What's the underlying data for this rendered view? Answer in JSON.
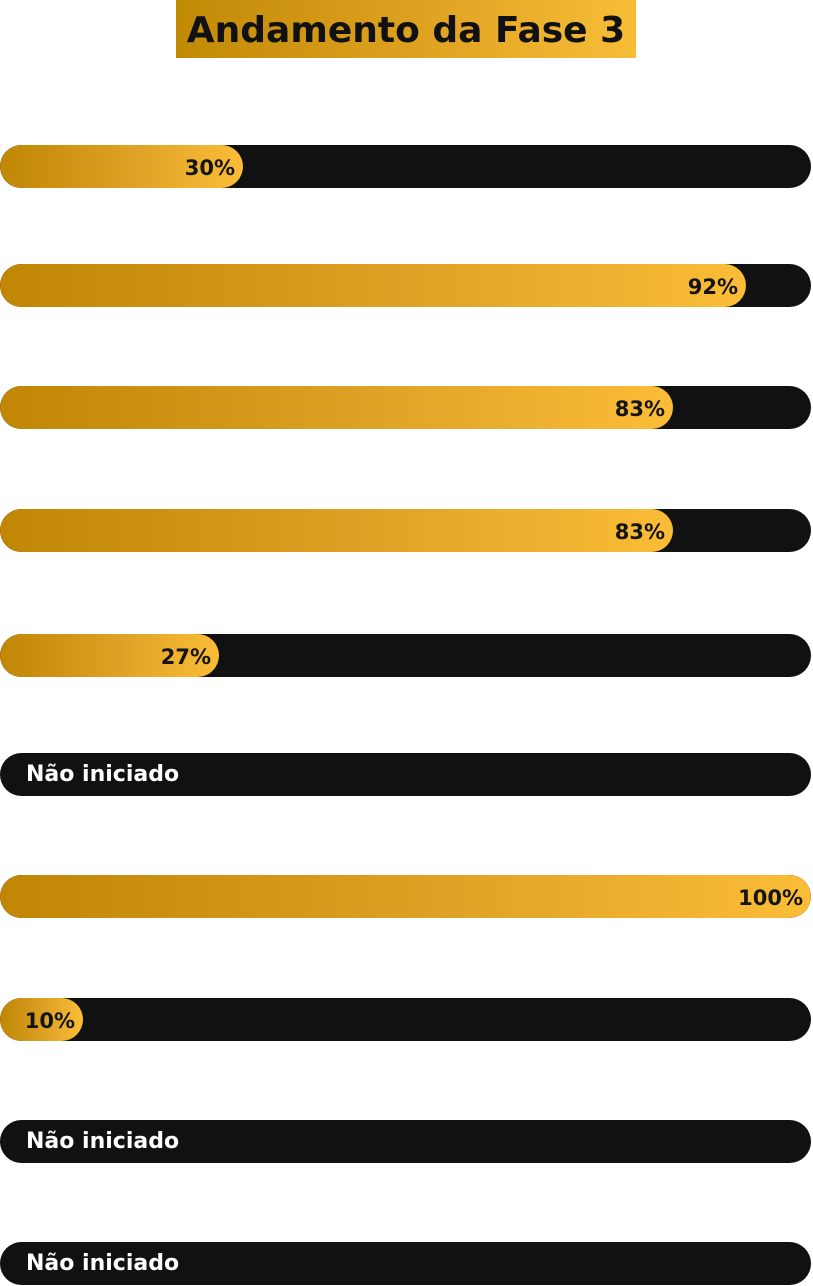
{
  "title": "Andamento da Fase 3",
  "colors": {
    "track": "#111111",
    "fill_start": "#c08604",
    "fill_end": "#fbbd37",
    "title_text": "#111111",
    "status_text": "#ffffff"
  },
  "chart_data": {
    "type": "bar",
    "orientation": "horizontal",
    "unit": "%",
    "xlim": [
      0,
      100
    ],
    "not_started_label": "Não iniciado",
    "bars": [
      {
        "value": 30,
        "label": "30%"
      },
      {
        "value": 92,
        "label": "92%"
      },
      {
        "value": 83,
        "label": "83%"
      },
      {
        "value": 83,
        "label": "83%"
      },
      {
        "value": 27,
        "label": "27%"
      },
      {
        "value": 0,
        "label": "Não iniciado",
        "not_started": true
      },
      {
        "value": 100,
        "label": "100%"
      },
      {
        "value": 10,
        "label": "10%"
      },
      {
        "value": 0,
        "label": "Não iniciado",
        "not_started": true
      },
      {
        "value": 0,
        "label": "Não iniciado",
        "not_started": true
      }
    ]
  }
}
